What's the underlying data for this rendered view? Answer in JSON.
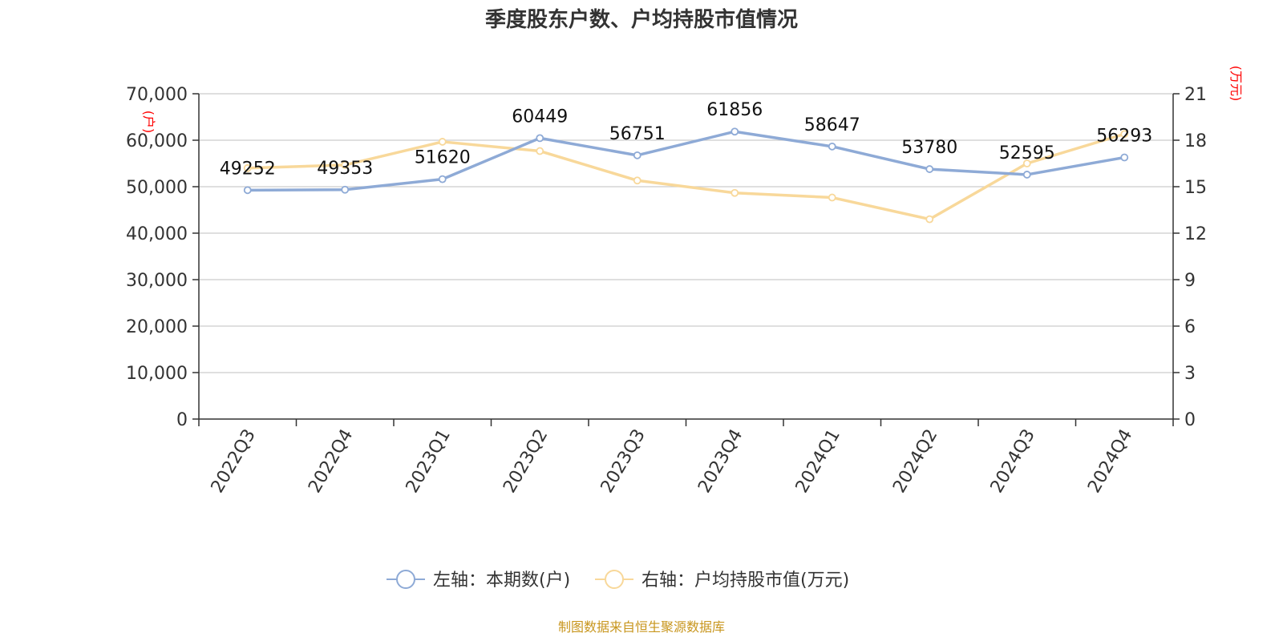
{
  "colors": {
    "left_series": "#8eaad6",
    "right_series": "#f8d89a",
    "unit_label": "#ff0000",
    "source": "#c8961e",
    "grid": "#cccccc",
    "axis": "#333333"
  },
  "source": "制图数据来自恒生聚源数据库",
  "chart_data": {
    "type": "line",
    "title": "季度股东户数、户均持股市值情况",
    "categories": [
      "2022Q3",
      "2022Q4",
      "2023Q1",
      "2023Q2",
      "2023Q3",
      "2023Q4",
      "2024Q1",
      "2024Q2",
      "2024Q3",
      "2024Q4"
    ],
    "y_left": {
      "unit": "(户)",
      "range": [
        0,
        70000
      ],
      "ticks": [
        "0",
        "10,000",
        "20,000",
        "30,000",
        "40,000",
        "50,000",
        "60,000",
        "70,000"
      ]
    },
    "y_right": {
      "unit": "(万元)",
      "range": [
        0,
        21
      ],
      "ticks": [
        "0",
        "3",
        "6",
        "9",
        "12",
        "15",
        "18",
        "21"
      ]
    },
    "grid": true,
    "legend_position": "bottom",
    "series": [
      {
        "name": "左轴：本期数(户)",
        "axis": "left",
        "values": [
          49252,
          49353,
          51620,
          60449,
          56751,
          61856,
          58647,
          53780,
          52595,
          56293
        ],
        "labels": [
          "49252",
          "49353",
          "51620",
          "60449",
          "56751",
          "61856",
          "58647",
          "53780",
          "52595",
          "56293"
        ]
      },
      {
        "name": "右轴：户均持股市值(万元)",
        "axis": "right",
        "values": [
          16.2,
          16.4,
          17.9,
          17.3,
          15.4,
          14.6,
          14.3,
          12.9,
          16.5,
          18.4
        ]
      }
    ]
  }
}
